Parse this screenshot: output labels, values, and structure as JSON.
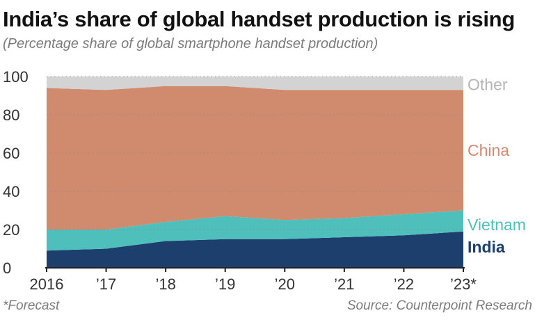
{
  "title": "India’s share of global handset production is rising",
  "subtitle": "(Percentage share of global smartphone handset production)",
  "footnote": "*Forecast",
  "source": "Source: Counterpoint Research",
  "chart_data": {
    "type": "area",
    "stacked": true,
    "x": [
      2016,
      2017,
      2018,
      2019,
      2020,
      2021,
      2022,
      2023
    ],
    "x_tick_labels": [
      "2016",
      "’17",
      "’18",
      "’19",
      "’20",
      "’21",
      "’22",
      "’23*"
    ],
    "y_ticks": [
      0,
      20,
      40,
      60,
      80,
      100
    ],
    "ylim": [
      0,
      100
    ],
    "grid": "horizontal dotted",
    "legend": "direct labels at right",
    "series": [
      {
        "name": "India",
        "color": "#1c3f6e",
        "values": [
          9,
          10,
          14,
          15,
          15,
          16,
          17,
          19
        ]
      },
      {
        "name": "Vietnam",
        "color": "#4fbfbc",
        "values": [
          11,
          10,
          10,
          12,
          10,
          10,
          11,
          11
        ]
      },
      {
        "name": "China",
        "color": "#d08a6e",
        "values": [
          74,
          73,
          71,
          68,
          68,
          67,
          65,
          63
        ]
      },
      {
        "name": "Other",
        "color": "#d3d3d3",
        "values": [
          6,
          7,
          5,
          5,
          7,
          7,
          7,
          7
        ]
      }
    ]
  }
}
